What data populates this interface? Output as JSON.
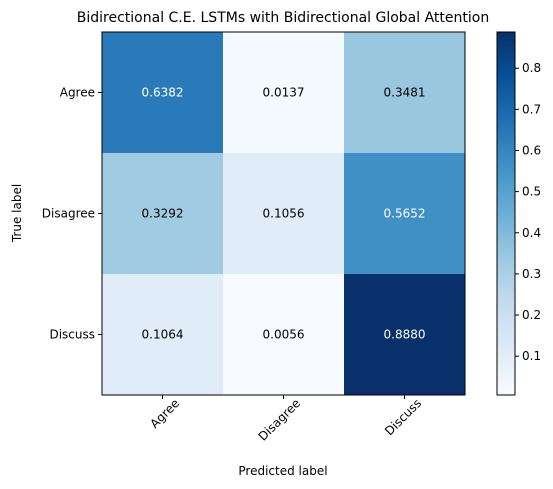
{
  "chart_data": {
    "type": "heatmap",
    "title": "Bidirectional C.E. LSTMs with Bidirectional Global Attention",
    "xlabel": "Predicted label",
    "ylabel": "True label",
    "x_categories": [
      "Agree",
      "Disagree",
      "Discuss"
    ],
    "y_categories": [
      "Agree",
      "Disagree",
      "Discuss"
    ],
    "values": [
      [
        0.6382,
        0.0137,
        0.3481
      ],
      [
        0.3292,
        0.1056,
        0.5652
      ],
      [
        0.1064,
        0.0056,
        0.888
      ]
    ],
    "cell_labels": [
      [
        "0.6382",
        "0.0137",
        "0.3481"
      ],
      [
        "0.3292",
        "0.1056",
        "0.5652"
      ],
      [
        "0.1064",
        "0.0056",
        "0.8880"
      ]
    ],
    "colormap": "Blues",
    "color_range": [
      0.0056,
      0.888
    ],
    "colorbar_ticks": [
      0.1,
      0.2,
      0.3,
      0.4,
      0.5,
      0.6,
      0.7,
      0.8
    ],
    "colorbar_tick_labels": [
      "0.1",
      "0.2",
      "0.3",
      "0.4",
      "0.5",
      "0.6",
      "0.7",
      "0.8"
    ],
    "text_color_light": "#ffffff",
    "text_color_dark": "#000000"
  }
}
